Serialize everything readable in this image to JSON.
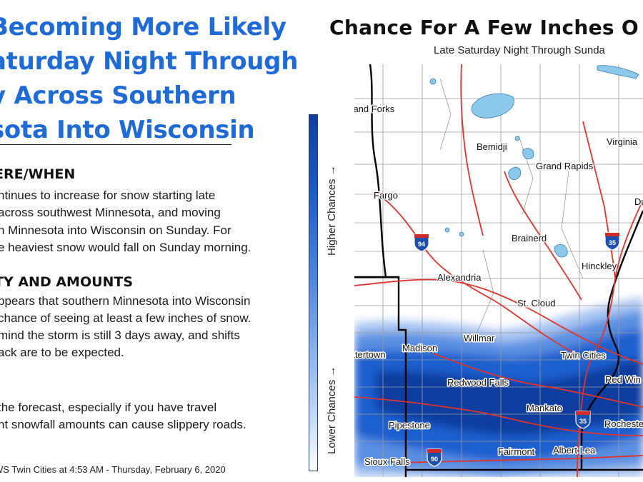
{
  "headline": {
    "lines": [
      "Becoming More Likely",
      "aturday Night Through",
      "y Across Southern",
      "sota Into Wisconsin"
    ]
  },
  "sections": [
    {
      "heading": "ERE/WHEN",
      "lines": [
        "ntinues to increase for snow starting late",
        "across southwest Minnesota, and moving",
        "n Minnesota into Wisconsin on Sunday. For",
        "e heaviest snow would fall on Sunday morning."
      ]
    },
    {
      "heading": "TY AND AMOUNTS",
      "lines": [
        "ppears that southern Minnesota into Wisconsin",
        "chance of seeing at least a few inches of snow.",
        "mind the storm is still 3 days away, and shifts",
        "ack are to be expected."
      ]
    },
    {
      "heading": "",
      "lines": [
        "the forecast, especially if you have travel",
        "nt snowfall amounts can cause slippery roads."
      ]
    }
  ],
  "footer": "WS Twin Cities at 4:53 AM - Thursday, February 6, 2020",
  "map": {
    "title": "Chance For A Few Inches O",
    "subtitle": "Late Saturday Night Through Sunda",
    "legend": {
      "higher": "Higher Chances →",
      "lower": "Lower Chances →"
    },
    "cities": {
      "grand_forks": "Grand Forks",
      "bemidji": "Bemidji",
      "virginia": "Virginia",
      "grand_rapids": "Grand Rapids",
      "fargo": "Fargo",
      "du": "Du",
      "brainerd": "Brainerd",
      "hinckley": "Hinckley",
      "alexandria": "Alexandria",
      "st_cloud": "St. Cloud",
      "willmar": "Willmar",
      "madison": "Madison",
      "watertown": "Watertown",
      "twin_cities": "Twin Cities",
      "redwood_falls": "Redwood Falls",
      "red_win": "Red Win",
      "mankato": "Mankato",
      "rochester": "Rocheste",
      "pipestone": "Pipestone",
      "fairmont": "Fairmont",
      "albert_lea": "Albert Lea",
      "sioux_falls": "Sioux Falls"
    },
    "interstates": {
      "i94": "94",
      "i35_north": "35",
      "i35_south": "35",
      "i90": "90"
    },
    "colors": {
      "snow_dark": "#0b3c9e",
      "snow_mid": "#1f5fcf",
      "snow_light": "#6a9be6",
      "lake": "#8cc8ec",
      "road": "#e0342f",
      "border": "#000000"
    }
  }
}
